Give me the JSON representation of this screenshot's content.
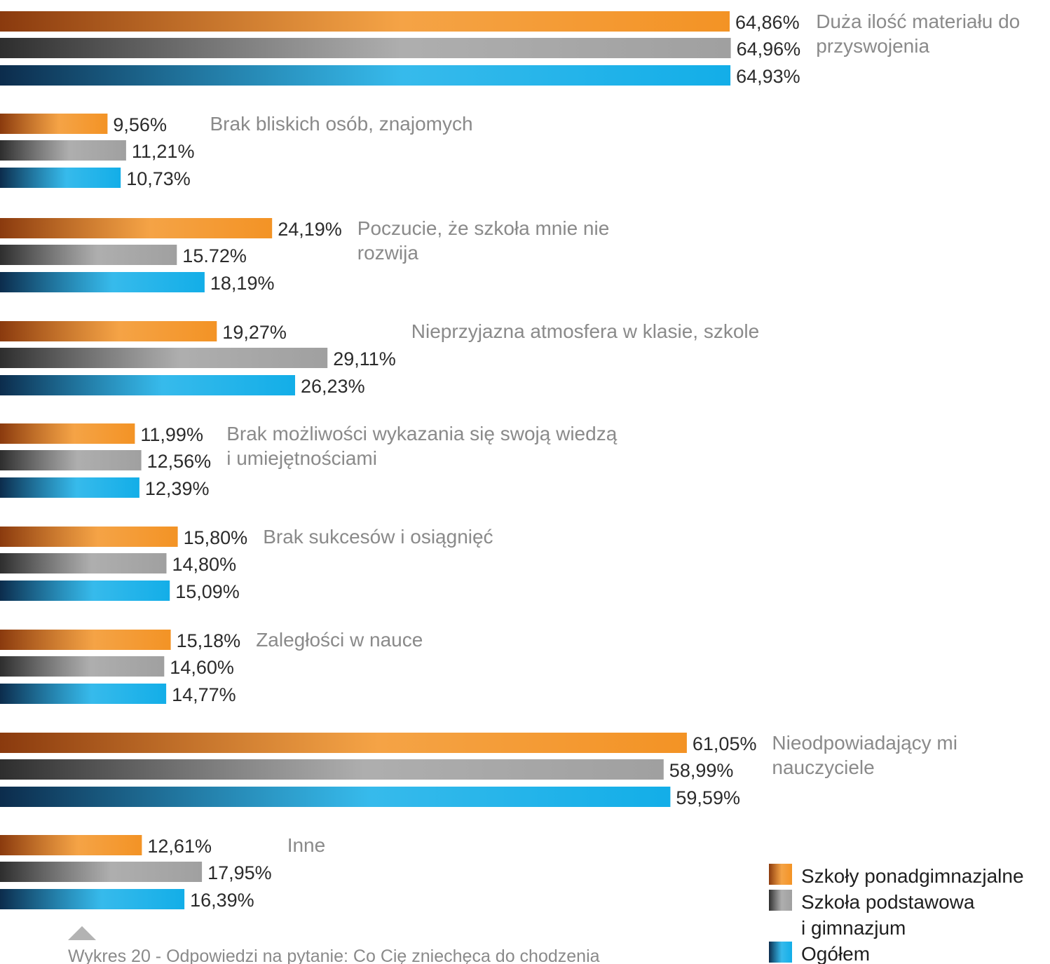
{
  "chart_data": {
    "type": "bar",
    "orientation": "horizontal",
    "title": "",
    "xlabel": "",
    "ylabel": "",
    "unit": "%",
    "grid": false,
    "legend_position": "bottom-right",
    "xlim": [
      0,
      100
    ],
    "caption": "Wykres 20 - Odpowiedzi na pytanie: Co Cię zniechęca do chodzenia",
    "categories": [
      [
        "Duża ilość materiału do",
        "przyswojenia"
      ],
      [
        "Brak bliskich osób, znajomych"
      ],
      [
        "Poczucie, że szkoła mnie nie",
        "rozwija"
      ],
      [
        "Nieprzyjazna atmosfera w klasie, szkole"
      ],
      [
        "Brak możliwości wykazania się swoją wiedzą",
        "i umiejętnościami"
      ],
      [
        "Brak sukcesów i osiągnięć"
      ],
      [
        "Zaległości w nauce"
      ],
      [
        "Nieodpowiadający mi",
        "nauczyciele"
      ],
      [
        "Inne"
      ]
    ],
    "series": [
      {
        "legend": [
          "Szkoły ponadgimnazjalne"
        ],
        "color": "#f39325",
        "dark_color": "#8a3a0e",
        "values": [
          64.86,
          9.56,
          24.19,
          19.27,
          11.99,
          15.8,
          15.18,
          61.05,
          12.61
        ],
        "labels": [
          "64,86%",
          "9,56%",
          "24,19%",
          "19,27%",
          "11,99%",
          "15,80%",
          "15,18%",
          "61,05%",
          "12,61%"
        ]
      },
      {
        "legend": [
          "Szkoła podstawowa",
          "i gimnazjum"
        ],
        "color": "#a0a0a0",
        "dark_color": "#2e2e2e",
        "values": [
          64.96,
          11.21,
          15.72,
          29.11,
          12.56,
          14.8,
          14.6,
          58.99,
          17.95
        ],
        "labels": [
          "64,96%",
          "11,21%",
          "15.72%",
          "29,11%",
          "12,56%",
          "14,80%",
          "14,60%",
          "58,99%",
          "17,95%"
        ]
      },
      {
        "legend": [
          "Ogółem"
        ],
        "color": "#13aee8",
        "dark_color": "#0c2c4c",
        "values": [
          64.93,
          10.73,
          18.19,
          26.23,
          12.39,
          15.09,
          14.77,
          59.59,
          16.39
        ],
        "labels": [
          "64,93%",
          "10,73%",
          "18,19%",
          "26,23%",
          "12,39%",
          "15,09%",
          "14,77%",
          "59,59%",
          "16,39%"
        ]
      }
    ]
  }
}
